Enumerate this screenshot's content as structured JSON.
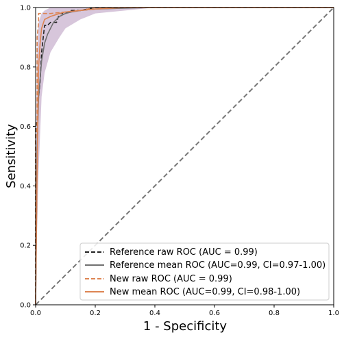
{
  "chart_data": {
    "type": "line",
    "xlabel": "1 - Specificity",
    "ylabel": "Sensitivity",
    "xlim": [
      0,
      1
    ],
    "ylim": [
      0,
      1
    ],
    "xticks": [
      "0.0",
      "0.2",
      "0.4",
      "0.6",
      "0.8",
      "1.0"
    ],
    "yticks": [
      "0.0",
      "0.2",
      "0.4",
      "0.6",
      "0.8",
      "1.0"
    ],
    "grid": false,
    "legend_position": "bottom-right",
    "colors": {
      "reference": "#222222",
      "reference_mean": "#707070",
      "new": "#dd8452",
      "band": "#c9b3cf",
      "diagonal": "#777777"
    },
    "series": [
      {
        "name": "Reference raw ROC (AUC = 0.99)",
        "style": "dashed",
        "color": "#222222",
        "x": [
          0,
          0,
          0.005,
          0.01,
          0.015,
          0.02,
          0.03,
          0.04,
          0.05,
          0.07,
          0.08,
          0.1,
          0.12,
          0.15,
          0.2,
          0.25,
          0.3,
          0.4,
          1
        ],
        "y": [
          0,
          0.6,
          0.62,
          0.7,
          0.75,
          0.85,
          0.94,
          0.94,
          0.95,
          0.95,
          0.98,
          0.98,
          0.99,
          0.99,
          1,
          1,
          1,
          1,
          1
        ]
      },
      {
        "name": "Reference mean ROC (AUC=0.99, CI=0.97-1.00)",
        "style": "solid",
        "color": "#707070",
        "x": [
          0,
          0.005,
          0.01,
          0.02,
          0.03,
          0.04,
          0.05,
          0.06,
          0.08,
          0.1,
          0.12,
          0.15,
          0.2,
          0.3,
          0.4,
          0.6,
          1
        ],
        "y": [
          0,
          0.52,
          0.7,
          0.82,
          0.88,
          0.91,
          0.93,
          0.95,
          0.97,
          0.98,
          0.985,
          0.99,
          0.995,
          0.998,
          1,
          1,
          1
        ]
      },
      {
        "name": "New raw ROC (AUC = 0.99)",
        "style": "dashed",
        "color": "#dd8452",
        "x": [
          0,
          0,
          0.005,
          0.005,
          0.01,
          0.01,
          0.02,
          0.05,
          0.1,
          0.15,
          0.2,
          0.3,
          1
        ],
        "y": [
          0,
          0.55,
          0.6,
          0.9,
          0.95,
          0.98,
          0.98,
          0.98,
          0.985,
          0.99,
          1,
          1,
          1
        ]
      },
      {
        "name": "New mean ROC (AUC=0.99, CI=0.98-1.00)",
        "style": "solid",
        "color": "#dd8452",
        "x": [
          0,
          0.005,
          0.01,
          0.015,
          0.02,
          0.03,
          0.05,
          0.08,
          0.1,
          0.15,
          0.2,
          0.3,
          0.4,
          1
        ],
        "y": [
          0,
          0.45,
          0.8,
          0.88,
          0.93,
          0.96,
          0.97,
          0.98,
          0.985,
          0.99,
          0.995,
          1,
          1,
          1
        ]
      }
    ],
    "confidence_band": {
      "x": [
        0,
        0.005,
        0.01,
        0.02,
        0.03,
        0.05,
        0.08,
        0.1,
        0.15,
        0.2,
        0.3,
        0.4,
        1
      ],
      "lower": [
        0,
        0.25,
        0.45,
        0.7,
        0.78,
        0.85,
        0.9,
        0.93,
        0.96,
        0.98,
        0.99,
        1,
        1
      ],
      "upper": [
        0.4,
        0.85,
        0.95,
        0.98,
        0.99,
        1,
        1,
        1,
        1,
        1,
        1,
        1,
        1
      ]
    }
  }
}
